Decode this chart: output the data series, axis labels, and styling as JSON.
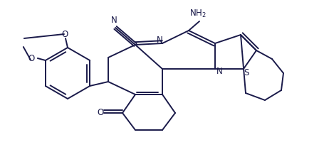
{
  "bg_color": "#ffffff",
  "line_color": "#1a1a4a",
  "lw": 1.4,
  "figsize": [
    4.55,
    2.21
  ],
  "dpi": 100,
  "xlim": [
    0.0,
    4.55
  ],
  "ylim": [
    0.0,
    2.21
  ]
}
